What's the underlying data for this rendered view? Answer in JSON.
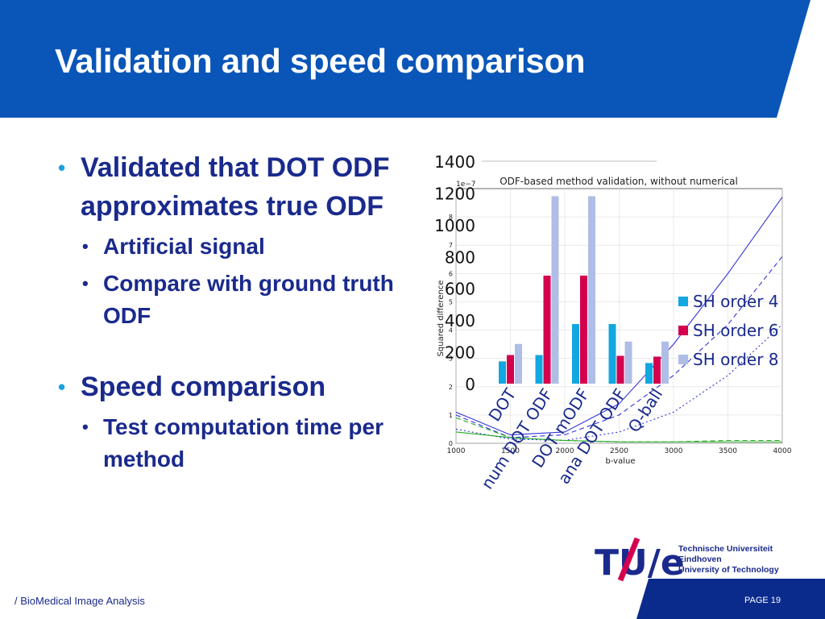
{
  "slide": {
    "title": "Validation and speed comparison",
    "footer": "/ BioMedical Image Analysis",
    "page": "PAGE 19",
    "colors": {
      "primary_blue": "#0a55b8",
      "navy": "#1a2a8c",
      "accent": "#d4004e"
    }
  },
  "bullets": [
    {
      "text": "Validated that DOT ODF approximates true ODF",
      "sub": [
        "Artificial signal",
        "Compare with ground truth ODF"
      ]
    },
    {
      "text": "Speed comparison",
      "sub": [
        "Test computation time per method"
      ]
    }
  ],
  "logo": {
    "mark": "TU/e",
    "lines": [
      "Technische Universiteit",
      "Eindhoven",
      "University of Technology"
    ]
  },
  "chart_data": [
    {
      "type": "line",
      "title": "ODF-based method validation, without numerical",
      "xlabel": "b-value",
      "ylabel": "Squared difference",
      "y_scale_note": "1e−7",
      "xlim": [
        1000,
        4000
      ],
      "ylim": [
        0,
        9
      ],
      "xticks": [
        1000,
        1500,
        2000,
        2500,
        3000,
        3500,
        4000
      ],
      "yticks": [
        0,
        1,
        2,
        3,
        4,
        5,
        6,
        7,
        8
      ],
      "grid": true,
      "series": [
        {
          "color": "#3333dd",
          "dash": "solid",
          "x": [
            1000,
            1500,
            2000,
            2500,
            3000,
            3500,
            4000
          ],
          "y": [
            1.1,
            0.3,
            0.4,
            1.4,
            3.5,
            6.0,
            8.7
          ]
        },
        {
          "color": "#3333dd",
          "dash": "dashed",
          "x": [
            1000,
            1500,
            2000,
            2500,
            3000,
            3500,
            4000
          ],
          "y": [
            1.0,
            0.2,
            0.3,
            1.0,
            2.4,
            4.2,
            6.6
          ]
        },
        {
          "color": "#3333dd",
          "dash": "dotted",
          "x": [
            1000,
            1500,
            2000,
            2500,
            3000,
            3500,
            4000
          ],
          "y": [
            0.5,
            0.15,
            0.1,
            0.4,
            1.1,
            2.4,
            4.2
          ]
        },
        {
          "color": "#22aa22",
          "dash": "solid",
          "x": [
            1000,
            1500,
            2000,
            2500,
            3000,
            3500,
            4000
          ],
          "y": [
            0.4,
            0.2,
            0.1,
            0.05,
            0.05,
            0.05,
            0.05
          ]
        },
        {
          "color": "#22aa22",
          "dash": "dashed",
          "x": [
            1000,
            1500,
            2000,
            2500,
            3000,
            3500,
            4000
          ],
          "y": [
            0.9,
            0.2,
            0.1,
            0.05,
            0.05,
            0.1,
            0.1
          ]
        }
      ]
    },
    {
      "type": "bar",
      "categories": [
        "DOT",
        "num DOT ODF",
        "DOT mODF",
        "ana DOT ODF",
        "Q-ball"
      ],
      "ylim": [
        0,
        1400
      ],
      "yticks": [
        0,
        200,
        400,
        600,
        800,
        1000,
        1200,
        1400
      ],
      "legend_position": "right",
      "series": [
        {
          "name": "SH order 4",
          "color": "#11a7e0",
          "values": [
            140,
            180,
            375,
            375,
            130
          ]
        },
        {
          "name": "SH order 6",
          "color": "#d4004e",
          "values": [
            180,
            680,
            680,
            175,
            170
          ]
        },
        {
          "name": "SH order 8",
          "color": "#b0bde6",
          "values": [
            250,
            1180,
            1180,
            265,
            265
          ]
        }
      ]
    }
  ]
}
